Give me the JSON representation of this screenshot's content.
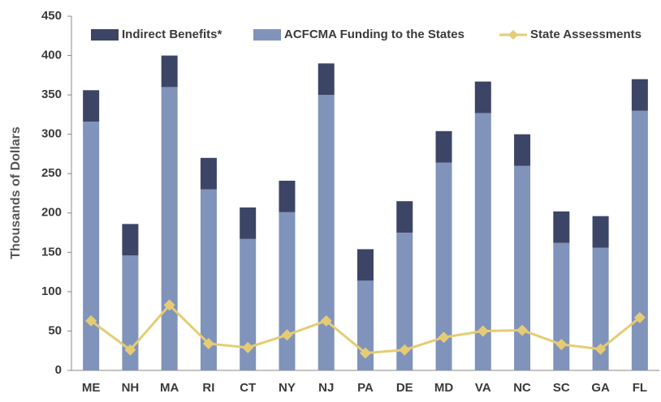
{
  "chart_data": {
    "type": "bar",
    "y_label": "Thousands of Dollars",
    "categories": [
      "ME",
      "NH",
      "MA",
      "RI",
      "CT",
      "NY",
      "NJ",
      "PA",
      "DE",
      "MD",
      "VA",
      "NC",
      "SC",
      "GA",
      "FL"
    ],
    "series": [
      {
        "name": "Indirect Benefits*",
        "type": "bar",
        "color": "#3c4566",
        "values": [
          40,
          40,
          40,
          40,
          40,
          40,
          40,
          40,
          40,
          40,
          40,
          40,
          40,
          40,
          40
        ]
      },
      {
        "name": "ACFCMA Funding to the States",
        "type": "bar",
        "color": "#8093bb",
        "values": [
          316,
          146,
          360,
          230,
          167,
          201,
          350,
          114,
          175,
          264,
          327,
          260,
          162,
          156,
          330
        ]
      },
      {
        "name": "State Assessments",
        "type": "line",
        "color": "#e5cc74",
        "values": [
          63,
          26,
          83,
          34,
          29,
          45,
          63,
          22,
          26,
          42,
          50,
          51,
          33,
          27,
          67
        ]
      }
    ],
    "stacked": true,
    "ylim": [
      0,
      450
    ],
    "yticks": [
      0,
      50,
      100,
      150,
      200,
      250,
      300,
      350,
      400,
      450
    ],
    "grid": false,
    "legend": "top"
  }
}
